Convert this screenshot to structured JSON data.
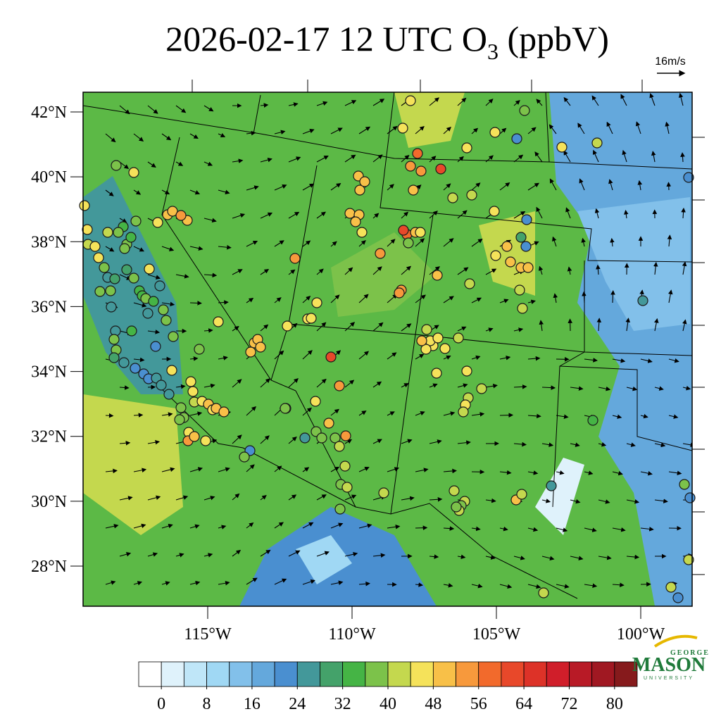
{
  "title": {
    "prefix": "2026-02-17 12 UTC O",
    "subscript": "3",
    "suffix": " (ppbV)"
  },
  "wind_reference": "16m/s",
  "lat_ticks": [
    {
      "value": 42,
      "label": "42°N"
    },
    {
      "value": 40,
      "label": "40°N"
    },
    {
      "value": 38,
      "label": "38°N"
    },
    {
      "value": 36,
      "label": "36°N"
    },
    {
      "value": 34,
      "label": "34°N"
    },
    {
      "value": 32,
      "label": "32°N"
    },
    {
      "value": 30,
      "label": "30°N"
    },
    {
      "value": 28,
      "label": "28°N"
    }
  ],
  "lon_ticks": [
    {
      "value": -115,
      "label": "115°W"
    },
    {
      "value": -110,
      "label": "110°W"
    },
    {
      "value": -105,
      "label": "105°W"
    },
    {
      "value": -100,
      "label": "100°W"
    }
  ],
  "colorbar": {
    "clim": [
      -4,
      84
    ],
    "ticks": [
      0,
      8,
      16,
      24,
      32,
      40,
      48,
      56,
      64,
      72,
      80
    ],
    "colors": [
      "#ffffff",
      "#dff2fb",
      "#bfe6f8",
      "#a0d8f4",
      "#82c0ea",
      "#64a8dc",
      "#4a8fd0",
      "#43989a",
      "#44a26a",
      "#45b445",
      "#7cc24a",
      "#c4d84e",
      "#f5e25a",
      "#f8c048",
      "#f7993c",
      "#f26a2c",
      "#e8482a",
      "#dd3228",
      "#d01e2a",
      "#b81a26",
      "#a01822",
      "#861a1c"
    ]
  },
  "stations": {
    "values": [
      44,
      44,
      58,
      54,
      54,
      60,
      50,
      44,
      44,
      36,
      22,
      44,
      40,
      20,
      20,
      28,
      20,
      48,
      48,
      48,
      48,
      40,
      40,
      40,
      44,
      44,
      40,
      40,
      56,
      60,
      50,
      46,
      36,
      52,
      52,
      52,
      50,
      50,
      48,
      50,
      50,
      50,
      50,
      46,
      54,
      44,
      44,
      44,
      44,
      50,
      50,
      50,
      48,
      60,
      54,
      44,
      40,
      50,
      52,
      24,
      36,
      36,
      36,
      40,
      40,
      38,
      40,
      36,
      40,
      40,
      44,
      44,
      46,
      44,
      48,
      44,
      40,
      40,
      40,
      44,
      40,
      44,
      44,
      40,
      40,
      38,
      40,
      38,
      48,
      40,
      24,
      32,
      24,
      36,
      20,
      40,
      40,
      40,
      20,
      44,
      36,
      44,
      44,
      40,
      44,
      44,
      38,
      24,
      30,
      36,
      36,
      24,
      30,
      36,
      34,
      44,
      44,
      50,
      50,
      48,
      52,
      24,
      32,
      36,
      34,
      24,
      36,
      36,
      36,
      22,
      32,
      24,
      36,
      36,
      28,
      24,
      20,
      20,
      22,
      24,
      24,
      24,
      44,
      44,
      44,
      40,
      44,
      50,
      44,
      48,
      50,
      44,
      52,
      48,
      46,
      36,
      38,
      38,
      38,
      44,
      36,
      20,
      36,
      36,
      36,
      34,
      34,
      36,
      36,
      40
    ]
  },
  "logo": {
    "top": "GEORGE",
    "main": "MASON",
    "bottom": "UNIVERSITY"
  }
}
